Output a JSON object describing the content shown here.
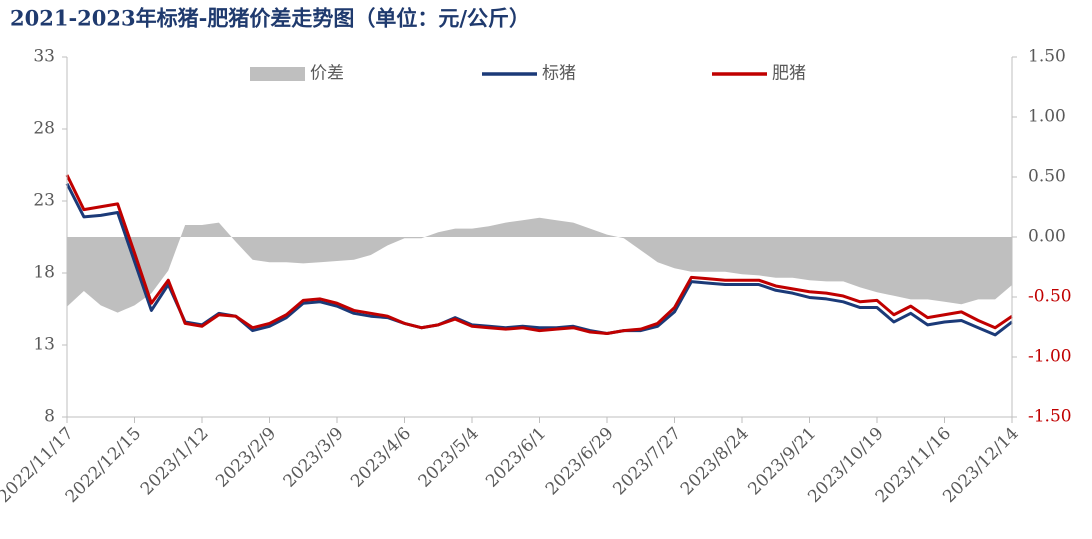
{
  "chart_data": {
    "type": "line",
    "title": "2021-2023年标猪-肥猪价差走势图（单位：元/公斤）",
    "categories": [
      "2022/11/17",
      null,
      null,
      null,
      "2022/12/15",
      null,
      null,
      null,
      "2023/1/12",
      null,
      null,
      null,
      "2023/2/9",
      null,
      null,
      null,
      "2023/3/9",
      null,
      null,
      null,
      "2023/4/6",
      null,
      null,
      null,
      "2023/5/4",
      null,
      null,
      null,
      "2023/6/1",
      null,
      null,
      null,
      "2023/6/29",
      null,
      null,
      null,
      "2023/7/27",
      null,
      null,
      null,
      "2023/8/24",
      null,
      null,
      null,
      "2023/9/21",
      null,
      null,
      null,
      "2023/10/19",
      null,
      null,
      null,
      "2023/11/16",
      null,
      null,
      null,
      "2023/12/14"
    ],
    "series": [
      {
        "name": "价差",
        "color": "#bfbfbf",
        "axis": "y2",
        "area": true,
        "values": [
          -0.58,
          -0.45,
          -0.57,
          -0.63,
          -0.57,
          -0.47,
          -0.28,
          0.1,
          0.1,
          0.12,
          -0.04,
          -0.19,
          -0.21,
          -0.21,
          -0.22,
          -0.21,
          -0.2,
          -0.19,
          -0.15,
          -0.07,
          -0.01,
          -0.01,
          0.04,
          0.07,
          0.07,
          0.09,
          0.12,
          0.14,
          0.16,
          0.14,
          0.12,
          0.07,
          0.02,
          -0.01,
          -0.11,
          -0.21,
          -0.26,
          -0.29,
          -0.29,
          -0.29,
          -0.31,
          -0.32,
          -0.34,
          -0.34,
          -0.36,
          -0.37,
          -0.37,
          -0.42,
          -0.46,
          -0.49,
          -0.52,
          -0.52,
          -0.54,
          -0.56,
          -0.52,
          -0.52,
          -0.4
        ]
      },
      {
        "name": "标猪",
        "color": "#1b3a78",
        "values": [
          24.2,
          21.9,
          22.0,
          22.2,
          18.8,
          15.4,
          17.2,
          14.6,
          14.4,
          15.2,
          15.0,
          14.0,
          14.3,
          14.9,
          15.9,
          16.0,
          15.7,
          15.2,
          15.0,
          14.9,
          14.5,
          14.2,
          14.4,
          14.9,
          14.4,
          14.3,
          14.2,
          14.3,
          14.2,
          14.2,
          14.3,
          14.0,
          13.8,
          14.0,
          14.0,
          14.3,
          15.3,
          17.4,
          17.3,
          17.2,
          17.2,
          17.2,
          16.8,
          16.6,
          16.3,
          16.2,
          16.0,
          15.6,
          15.6,
          14.6,
          15.2,
          14.4,
          14.6,
          14.7,
          14.2,
          13.7,
          14.6
        ]
      },
      {
        "name": "肥猪",
        "color": "#c00000",
        "values": [
          24.8,
          22.4,
          22.6,
          22.8,
          19.4,
          15.9,
          17.5,
          14.5,
          14.3,
          15.1,
          15.0,
          14.2,
          14.5,
          15.1,
          16.1,
          16.2,
          15.9,
          15.4,
          15.2,
          15.0,
          14.5,
          14.2,
          14.4,
          14.8,
          14.3,
          14.2,
          14.1,
          14.2,
          14.0,
          14.1,
          14.2,
          13.9,
          13.8,
          14.0,
          14.1,
          14.5,
          15.6,
          17.7,
          17.6,
          17.5,
          17.5,
          17.5,
          17.1,
          16.9,
          16.7,
          16.6,
          16.4,
          16.0,
          16.1,
          15.1,
          15.7,
          14.9,
          15.1,
          15.3,
          14.7,
          14.2,
          15.0
        ]
      }
    ],
    "ylim": [
      8,
      33
    ],
    "yticks": [
      8,
      13,
      18,
      23,
      28,
      33
    ],
    "y2lim": [
      -1.5,
      1.5
    ],
    "y2ticks": [
      {
        "value": -1.5,
        "label": "-1.50"
      },
      {
        "value": -1,
        "label": "-1.00"
      },
      {
        "value": -0.5,
        "label": "-0.50"
      },
      {
        "value": 0,
        "label": "0.00"
      },
      {
        "value": 0.5,
        "label": "0.50"
      },
      {
        "value": 1,
        "label": "1.00"
      },
      {
        "value": 1.5,
        "label": "1.50"
      }
    ],
    "legend": "top"
  }
}
